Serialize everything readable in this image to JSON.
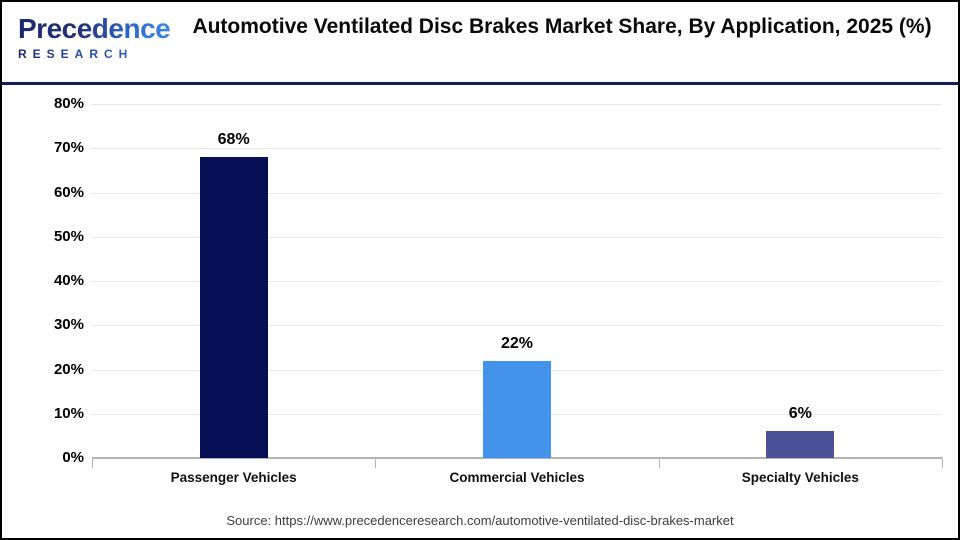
{
  "header": {
    "logo": {
      "name": "Precedence",
      "subtitle": "RESEARCH"
    },
    "title": "Automotive Ventilated Disc Brakes Market Share, By Application, 2025 (%)"
  },
  "chart_data": {
    "type": "bar",
    "title": "Automotive Ventilated Disc Brakes Market Share, By Application, 2025 (%)",
    "categories": [
      "Passenger Vehicles",
      "Commercial Vehicles",
      "Specialty Vehicles"
    ],
    "values": [
      68,
      22,
      6
    ],
    "value_labels": [
      "68%",
      "22%",
      "6%"
    ],
    "bar_colors": [
      "#070f55",
      "#4493eb",
      "#4c5199"
    ],
    "xlabel": "",
    "ylabel": "",
    "ylim": [
      0,
      80
    ],
    "ytick_step": 10,
    "yticks": [
      "80%",
      "70%",
      "60%",
      "50%",
      "40%",
      "30%",
      "20%",
      "10%",
      "0%"
    ],
    "grid": "horizontal",
    "legend": "none",
    "colors": {
      "gridline": "#e7e7e7",
      "axis_line": "#b3b3b3",
      "text": "#000000",
      "header_divider": "#121d55"
    }
  },
  "footer": {
    "source": "Source: https://www.precedenceresearch.com/automotive-ventilated-disc-brakes-market"
  }
}
